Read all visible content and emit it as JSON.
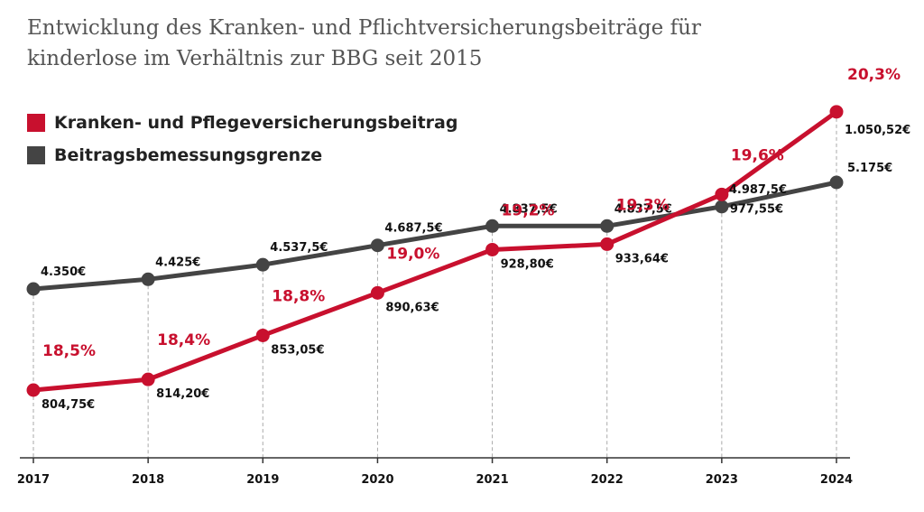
{
  "title": {
    "line1": "Entwicklung des Kranken- und Pflichtversicherungsbeiträge für",
    "line2": "kinderlose im Verhältnis zur BBG seit 2015"
  },
  "colors": {
    "red": "#c8102e",
    "dark": "#444444",
    "grid": "#aaaaaa",
    "axis": "#333333"
  },
  "chart_data": {
    "type": "line",
    "title": "Entwicklung des Kranken- und Pflichtversicherungsbeiträge für kinderlose im Verhältnis zur BBG seit 2015",
    "categories": [
      "2017",
      "2018",
      "2019",
      "2020",
      "2021",
      "2022",
      "2023",
      "2024"
    ],
    "legend_position": "top-left",
    "grid": "vertical dashed",
    "series": [
      {
        "name": "Kranken- und Pflegeversicherungsbeitrag",
        "color": "#c8102e",
        "values": [
          804.75,
          814.2,
          853.05,
          890.63,
          928.8,
          933.64,
          977.55,
          1050.52
        ],
        "value_labels": [
          "804,75€",
          "814,20€",
          "853,05€",
          "890,63€",
          "928,80€",
          "933,64€",
          "977,55€",
          "1.050,52€"
        ],
        "percent_labels": [
          "18,5%",
          "18,4%",
          "18,8%",
          "19,0%",
          "19,2%",
          "19,3%",
          "19,6%",
          "20,3%"
        ]
      },
      {
        "name": "Beitragsbemessungsgrenze",
        "color": "#444444",
        "values": [
          4350,
          4425,
          4537.5,
          4687.5,
          4837.5,
          4837.5,
          4987.5,
          5175
        ],
        "value_labels": [
          "4.350€",
          "4.425€",
          "4.537,5€",
          "4.687,5€",
          "4.837,5€",
          "4.837,5€",
          "4.987,5€",
          "5.175€"
        ]
      }
    ]
  }
}
